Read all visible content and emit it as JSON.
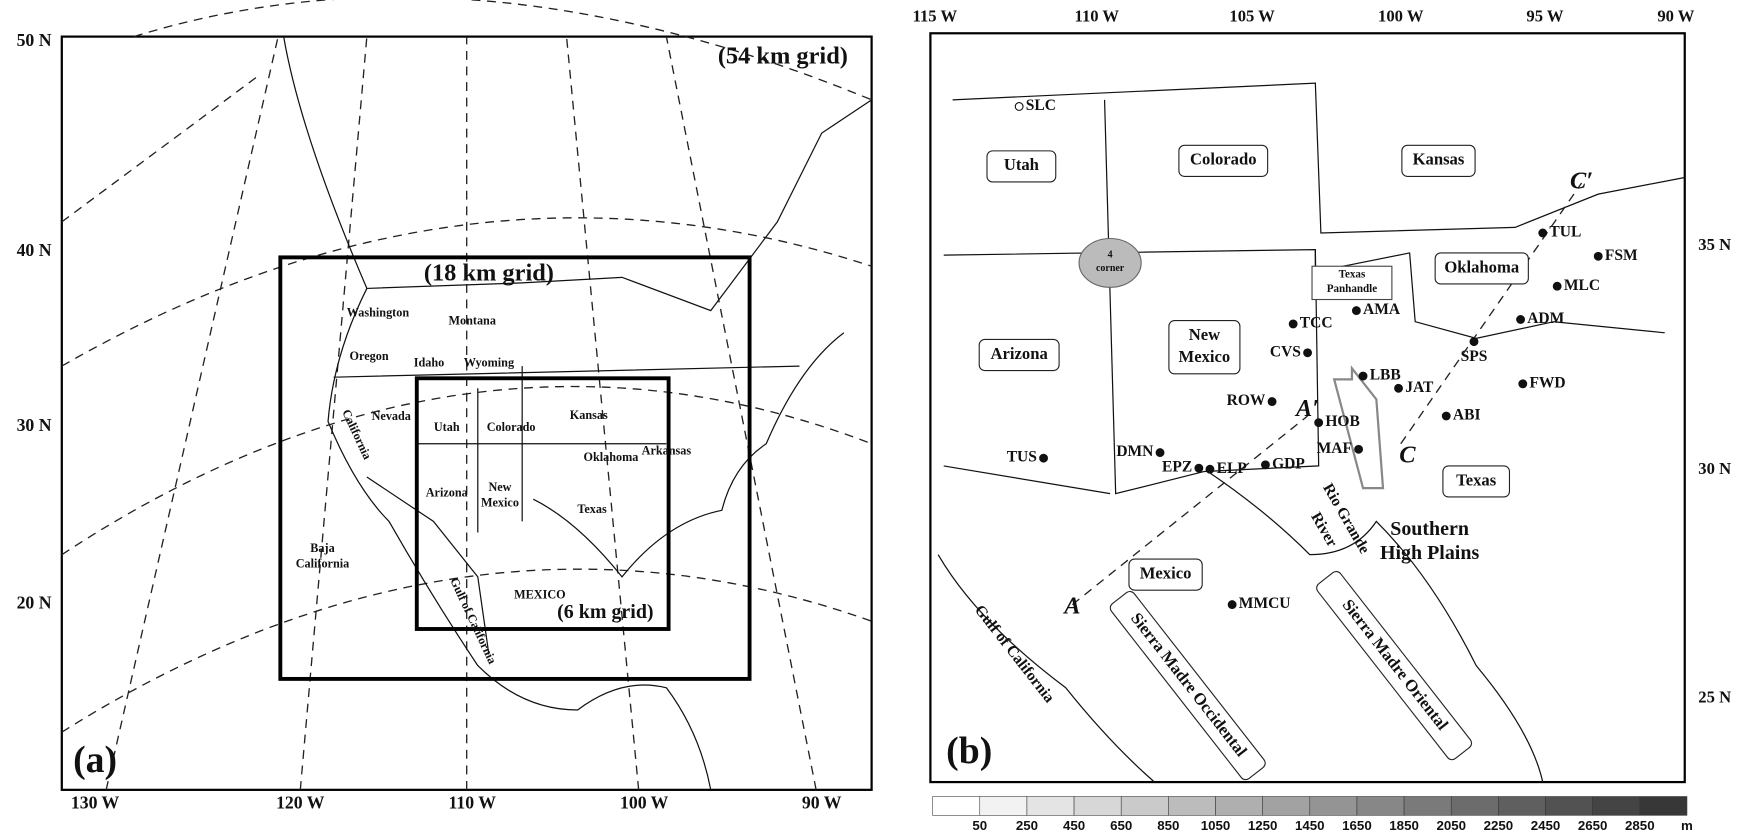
{
  "panel_a": {
    "label": "(a)",
    "grids": [
      "(54 km grid)",
      "(18 km grid)",
      "(6 km grid)"
    ],
    "lat_labels": [
      "50 N",
      "40 N",
      "30 N",
      "20 N"
    ],
    "lon_labels": [
      "130 W",
      "120 W",
      "110 W",
      "100 W",
      "90 W"
    ],
    "places": [
      {
        "lines": [
          "Washington"
        ]
      },
      {
        "lines": [
          "Montana"
        ]
      },
      {
        "lines": [
          "Oregon"
        ]
      },
      {
        "lines": [
          "Idaho"
        ]
      },
      {
        "lines": [
          "Wyoming"
        ]
      },
      {
        "lines": [
          "Nevada"
        ]
      },
      {
        "lines": [
          "California"
        ]
      },
      {
        "lines": [
          "Utah"
        ]
      },
      {
        "lines": [
          "Colorado"
        ]
      },
      {
        "lines": [
          "Kansas"
        ]
      },
      {
        "lines": [
          "Oklahoma"
        ]
      },
      {
        "lines": [
          "Arkansas"
        ]
      },
      {
        "lines": [
          "Arizona"
        ]
      },
      {
        "lines": [
          "New",
          "Mexico"
        ]
      },
      {
        "lines": [
          "Texas"
        ]
      },
      {
        "lines": [
          "Baja",
          "California"
        ]
      },
      {
        "lines": [
          "MEXICO"
        ]
      },
      {
        "lines": [
          "Gulf of California"
        ]
      }
    ]
  },
  "panel_b": {
    "label": "(b)",
    "lon_labels": [
      "115 W",
      "110 W",
      "105 W",
      "100 W",
      "95 W",
      "90 W"
    ],
    "lat_labels": [
      "35 N",
      "30 N",
      "25 N"
    ],
    "states": [
      {
        "lines": [
          "Utah"
        ]
      },
      {
        "lines": [
          "Colorado"
        ]
      },
      {
        "lines": [
          "Kansas"
        ]
      },
      {
        "lines": [
          "Oklahoma"
        ]
      },
      {
        "lines": [
          "New",
          "Mexico"
        ]
      },
      {
        "lines": [
          "Arizona"
        ]
      },
      {
        "lines": [
          "Texas"
        ]
      },
      {
        "lines": [
          "Mexico"
        ]
      }
    ],
    "panhandle": [
      "Texas",
      "Panhandle"
    ],
    "four_corner": [
      "4",
      "corner"
    ],
    "stations": [
      "SLC",
      "TUL",
      "FSM",
      "MLC",
      "AMA",
      "TCC",
      "ADM",
      "CVS",
      "SPS",
      "LBB",
      "JAT",
      "FWD",
      "ROW",
      "HOB",
      "ABI",
      "DMN",
      "MAF",
      "EPZ",
      "ELP",
      "GDP",
      "TUS",
      "MMCU"
    ],
    "cross_sections": [
      "A",
      "A′",
      "C",
      "C′"
    ],
    "regions": [
      {
        "lines": [
          "Southern",
          "High Plains"
        ]
      },
      {
        "lines": [
          "Rio Grande"
        ]
      },
      {
        "lines": [
          "River"
        ]
      },
      {
        "lines": [
          "Gulf of California"
        ]
      },
      {
        "lines": [
          "Sierra Madre Occidental"
        ]
      },
      {
        "lines": [
          "Sierra Madre Oriental"
        ]
      }
    ]
  },
  "colorbar": {
    "ticks": [
      50,
      250,
      450,
      650,
      850,
      1050,
      1250,
      1450,
      1650,
      1850,
      2050,
      2250,
      2450,
      2650,
      2850
    ],
    "unit": "m"
  }
}
